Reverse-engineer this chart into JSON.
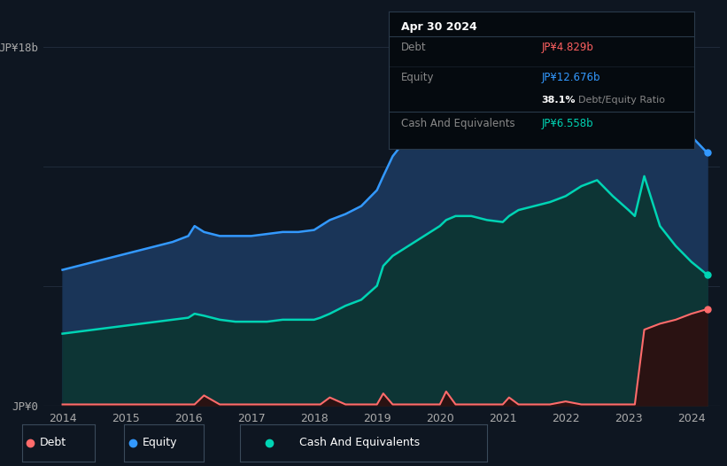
{
  "background_color": "#0e1621",
  "chart_bg": "#0e1621",
  "ylabel_top": "JP¥18b",
  "ylabel_bottom": "JP¥0",
  "x_ticks": [
    2014,
    2015,
    2016,
    2017,
    2018,
    2019,
    2020,
    2021,
    2022,
    2023,
    2024
  ],
  "equity_color": "#3399ff",
  "equity_fill": "#1a3050",
  "cash_color": "#00d4b4",
  "cash_fill": "#0a3535",
  "debt_color": "#ff6b6b",
  "debt_fill": "#3a1010",
  "tooltip_title": "Apr 30 2024",
  "tooltip_debt_label": "Debt",
  "tooltip_debt_value": "JP¥4.829b",
  "tooltip_equity_label": "Equity",
  "tooltip_equity_value": "JP¥12.676b",
  "tooltip_ratio": "38.1%",
  "tooltip_ratio_label": "Debt/Equity Ratio",
  "tooltip_cash_label": "Cash And Equivalents",
  "tooltip_cash_value": "JP¥6.558b",
  "ylim": [
    0,
    18
  ],
  "years": [
    2014.0,
    2014.25,
    2014.5,
    2014.75,
    2015.0,
    2015.25,
    2015.5,
    2015.75,
    2016.0,
    2016.1,
    2016.25,
    2016.5,
    2016.75,
    2017.0,
    2017.25,
    2017.5,
    2017.75,
    2018.0,
    2018.1,
    2018.25,
    2018.5,
    2018.75,
    2019.0,
    2019.1,
    2019.25,
    2019.5,
    2019.75,
    2020.0,
    2020.1,
    2020.25,
    2020.5,
    2020.75,
    2021.0,
    2021.1,
    2021.25,
    2021.5,
    2021.75,
    2022.0,
    2022.25,
    2022.5,
    2022.75,
    2023.0,
    2023.1,
    2023.25,
    2023.5,
    2023.75,
    2024.0,
    2024.25
  ],
  "equity": [
    6.8,
    7.0,
    7.2,
    7.4,
    7.6,
    7.8,
    8.0,
    8.2,
    8.5,
    9.0,
    8.7,
    8.5,
    8.5,
    8.5,
    8.6,
    8.7,
    8.7,
    8.8,
    9.0,
    9.3,
    9.6,
    10.0,
    10.8,
    11.5,
    12.5,
    13.5,
    14.0,
    14.5,
    15.0,
    15.3,
    15.2,
    15.1,
    15.0,
    15.5,
    15.8,
    16.0,
    16.1,
    16.3,
    17.0,
    17.2,
    16.8,
    16.2,
    15.5,
    14.8,
    14.2,
    14.0,
    13.5,
    12.676
  ],
  "cash": [
    3.6,
    3.7,
    3.8,
    3.9,
    4.0,
    4.1,
    4.2,
    4.3,
    4.4,
    4.6,
    4.5,
    4.3,
    4.2,
    4.2,
    4.2,
    4.3,
    4.3,
    4.3,
    4.4,
    4.6,
    5.0,
    5.3,
    6.0,
    7.0,
    7.5,
    8.0,
    8.5,
    9.0,
    9.3,
    9.5,
    9.5,
    9.3,
    9.2,
    9.5,
    9.8,
    10.0,
    10.2,
    10.5,
    11.0,
    11.3,
    10.5,
    9.8,
    9.5,
    11.5,
    9.0,
    8.0,
    7.2,
    6.558
  ],
  "debt": [
    0.05,
    0.05,
    0.05,
    0.05,
    0.05,
    0.05,
    0.05,
    0.05,
    0.05,
    0.05,
    0.5,
    0.05,
    0.05,
    0.05,
    0.05,
    0.05,
    0.05,
    0.05,
    0.05,
    0.4,
    0.05,
    0.05,
    0.05,
    0.6,
    0.05,
    0.05,
    0.05,
    0.05,
    0.7,
    0.05,
    0.05,
    0.05,
    0.05,
    0.4,
    0.05,
    0.05,
    0.05,
    0.2,
    0.05,
    0.05,
    0.05,
    0.05,
    0.05,
    3.8,
    4.1,
    4.3,
    4.6,
    4.829
  ]
}
